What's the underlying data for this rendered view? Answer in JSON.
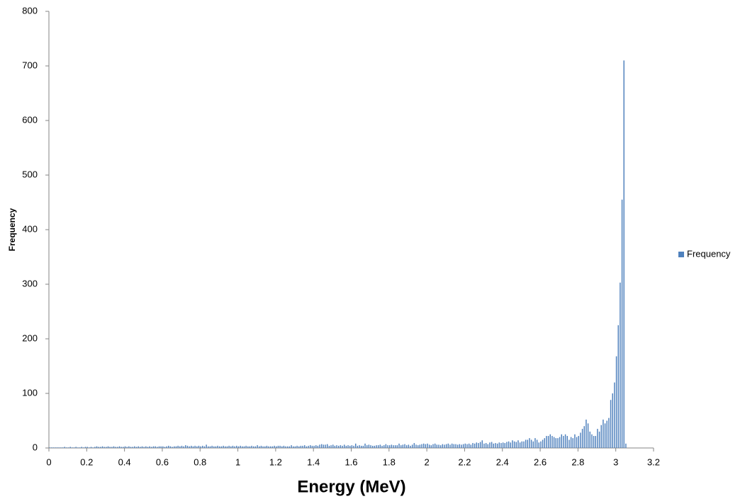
{
  "chart_data": {
    "type": "bar",
    "x_label": "Energy (MeV)",
    "y_label": "Frequency",
    "x": [
      0,
      0.01,
      0.02,
      0.03,
      0.04,
      0.05,
      0.06,
      0.07,
      0.08,
      0.09,
      0.1,
      0.11,
      0.12,
      0.13,
      0.14,
      0.15,
      0.16,
      0.17,
      0.18,
      0.19,
      0.2,
      0.21,
      0.22,
      0.23,
      0.24,
      0.25,
      0.26,
      0.27,
      0.28,
      0.29,
      0.3,
      0.31,
      0.32,
      0.33,
      0.34,
      0.35,
      0.36,
      0.37,
      0.38,
      0.39,
      0.4,
      0.41,
      0.42,
      0.43,
      0.44,
      0.45,
      0.46,
      0.47,
      0.48,
      0.49,
      0.5,
      0.51,
      0.52,
      0.53,
      0.54,
      0.55,
      0.56,
      0.57,
      0.58,
      0.59,
      0.6,
      0.61,
      0.62,
      0.63,
      0.64,
      0.65,
      0.66,
      0.67,
      0.68,
      0.69,
      0.7,
      0.71,
      0.72,
      0.73,
      0.74,
      0.75,
      0.76,
      0.77,
      0.78,
      0.79,
      0.8,
      0.81,
      0.82,
      0.83,
      0.84,
      0.85,
      0.86,
      0.87,
      0.88,
      0.89,
      0.9,
      0.91,
      0.92,
      0.93,
      0.94,
      0.95,
      0.96,
      0.97,
      0.98,
      0.99,
      1,
      1.01,
      1.02,
      1.03,
      1.04,
      1.05,
      1.06,
      1.07,
      1.08,
      1.09,
      1.1,
      1.11,
      1.12,
      1.13,
      1.14,
      1.15,
      1.16,
      1.17,
      1.18,
      1.19,
      1.2,
      1.21,
      1.22,
      1.23,
      1.24,
      1.25,
      1.26,
      1.27,
      1.28,
      1.29,
      1.3,
      1.31,
      1.32,
      1.33,
      1.34,
      1.35,
      1.36,
      1.37,
      1.38,
      1.39,
      1.4,
      1.41,
      1.42,
      1.43,
      1.44,
      1.45,
      1.46,
      1.47,
      1.48,
      1.49,
      1.5,
      1.51,
      1.52,
      1.53,
      1.54,
      1.55,
      1.56,
      1.57,
      1.58,
      1.59,
      1.6,
      1.61,
      1.62,
      1.63,
      1.64,
      1.65,
      1.66,
      1.67,
      1.68,
      1.69,
      1.7,
      1.71,
      1.72,
      1.73,
      1.74,
      1.75,
      1.76,
      1.77,
      1.78,
      1.79,
      1.8,
      1.81,
      1.82,
      1.83,
      1.84,
      1.85,
      1.86,
      1.87,
      1.88,
      1.89,
      1.9,
      1.91,
      1.92,
      1.93,
      1.94,
      1.95,
      1.96,
      1.97,
      1.98,
      1.99,
      2,
      2.01,
      2.02,
      2.03,
      2.04,
      2.05,
      2.06,
      2.07,
      2.08,
      2.09,
      2.1,
      2.11,
      2.12,
      2.13,
      2.14,
      2.15,
      2.16,
      2.17,
      2.18,
      2.19,
      2.2,
      2.21,
      2.22,
      2.23,
      2.24,
      2.25,
      2.26,
      2.27,
      2.28,
      2.29,
      2.3,
      2.31,
      2.32,
      2.33,
      2.34,
      2.35,
      2.36,
      2.37,
      2.38,
      2.39,
      2.4,
      2.41,
      2.42,
      2.43,
      2.44,
      2.45,
      2.46,
      2.47,
      2.48,
      2.49,
      2.5,
      2.51,
      2.52,
      2.53,
      2.54,
      2.55,
      2.56,
      2.57,
      2.58,
      2.59,
      2.6,
      2.61,
      2.62,
      2.63,
      2.64,
      2.65,
      2.66,
      2.67,
      2.68,
      2.69,
      2.7,
      2.71,
      2.72,
      2.73,
      2.74,
      2.75,
      2.76,
      2.77,
      2.78,
      2.79,
      2.8,
      2.81,
      2.82,
      2.83,
      2.84,
      2.85,
      2.86,
      2.87,
      2.88,
      2.89,
      2.9,
      2.91,
      2.92,
      2.93,
      2.94,
      2.95,
      2.96,
      2.97,
      2.98,
      2.99,
      3,
      3.01,
      3.02,
      3.03,
      3.04,
      3.05
    ],
    "series": [
      {
        "name": "Frequency",
        "color": "#4f81bd",
        "values": [
          1,
          1,
          1,
          1,
          1,
          1,
          1,
          1,
          2,
          1,
          1,
          2,
          1,
          1,
          2,
          1,
          1,
          2,
          1,
          2,
          2,
          1,
          2,
          1,
          2,
          3,
          2,
          2,
          3,
          2,
          2,
          3,
          2,
          2,
          3,
          2,
          2,
          3,
          2,
          2,
          3,
          2,
          3,
          2,
          2,
          3,
          2,
          3,
          2,
          3,
          2,
          3,
          2,
          3,
          2,
          3,
          3,
          2,
          3,
          3,
          3,
          2,
          3,
          4,
          3,
          2,
          3,
          3,
          4,
          3,
          4,
          3,
          5,
          4,
          3,
          4,
          3,
          4,
          3,
          4,
          3,
          4,
          3,
          6,
          3,
          3,
          4,
          3,
          3,
          4,
          3,
          3,
          4,
          3,
          3,
          4,
          3,
          4,
          3,
          4,
          3,
          4,
          3,
          3,
          4,
          3,
          3,
          4,
          3,
          3,
          5,
          3,
          4,
          3,
          3,
          4,
          3,
          3,
          3,
          4,
          3,
          4,
          4,
          3,
          4,
          3,
          3,
          3,
          5,
          3,
          3,
          4,
          3,
          4,
          4,
          5,
          3,
          4,
          5,
          4,
          4,
          5,
          4,
          6,
          7,
          6,
          6,
          7,
          4,
          5,
          6,
          4,
          5,
          4,
          5,
          4,
          6,
          4,
          5,
          4,
          5,
          4,
          8,
          4,
          5,
          4,
          4,
          8,
          5,
          6,
          5,
          4,
          4,
          5,
          5,
          6,
          4,
          5,
          7,
          5,
          5,
          6,
          5,
          5,
          5,
          8,
          5,
          6,
          7,
          5,
          6,
          4,
          6,
          9,
          6,
          5,
          6,
          7,
          8,
          7,
          8,
          6,
          5,
          7,
          8,
          6,
          6,
          5,
          7,
          6,
          7,
          8,
          6,
          8,
          7,
          7,
          6,
          7,
          6,
          7,
          8,
          7,
          8,
          6,
          9,
          8,
          10,
          9,
          11,
          14,
          8,
          9,
          7,
          10,
          11,
          8,
          9,
          8,
          10,
          9,
          10,
          9,
          11,
          12,
          10,
          14,
          12,
          11,
          14,
          10,
          12,
          12,
          15,
          15,
          18,
          15,
          12,
          18,
          15,
          10,
          12,
          15,
          18,
          22,
          22,
          25,
          22,
          20,
          18,
          18,
          20,
          25,
          22,
          25,
          22,
          15,
          20,
          18,
          25,
          20,
          22,
          28,
          35,
          40,
          52,
          45,
          30,
          25,
          22,
          22,
          35,
          30,
          42,
          52,
          45,
          50,
          55,
          88,
          100,
          120,
          168,
          225,
          303,
          455,
          710,
          8
        ]
      }
    ],
    "xlim": [
      0,
      3.2
    ],
    "xticks": [
      0,
      0.2,
      0.4,
      0.6,
      0.8,
      1,
      1.2,
      1.4,
      1.6,
      1.8,
      2,
      2.2,
      2.4,
      2.6,
      2.8,
      3,
      3.2
    ],
    "ylim": [
      0,
      800
    ],
    "yticks": [
      0,
      100,
      200,
      300,
      400,
      500,
      600,
      700,
      800
    ],
    "grid": false,
    "legend": "right"
  }
}
